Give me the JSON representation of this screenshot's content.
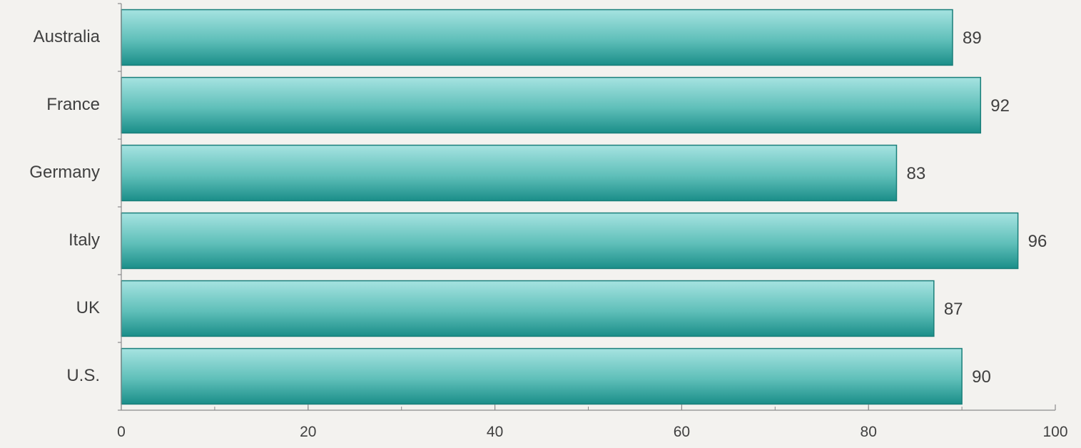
{
  "chart_data": {
    "type": "bar",
    "orientation": "horizontal",
    "categories": [
      "Australia",
      "France",
      "Germany",
      "Italy",
      "UK",
      "U.S."
    ],
    "values": [
      89,
      92,
      83,
      96,
      87,
      90
    ],
    "title": "",
    "xlabel": "",
    "ylabel": "",
    "xlim": [
      0,
      100
    ],
    "xticks": [
      0,
      20,
      40,
      60,
      80,
      100
    ],
    "minor_tick_step": 10,
    "grid": false,
    "legend": "none",
    "data_labels": true,
    "colors": {
      "bar_top": "#a6e3e1",
      "bar_mid": "#5fbfb9",
      "bar_bottom": "#1a8e89",
      "bar_border": "#1a7f7a",
      "axis": "#8c8c8c",
      "text": "#404040"
    }
  }
}
